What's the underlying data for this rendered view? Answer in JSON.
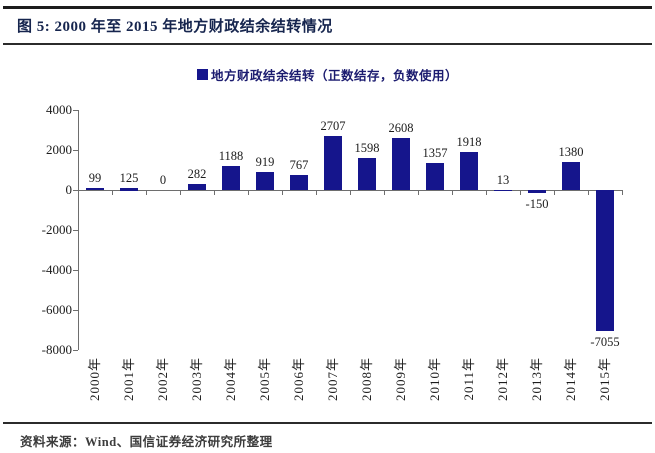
{
  "header": {
    "title": "图 5:  2000 年至 2015 年地方财政结余结转情况"
  },
  "chart_data": {
    "type": "bar",
    "title": "2000 年至 2015 年地方财政结余结转情况",
    "legend": "地方财政结余结转（正数结存，负数使用）",
    "legend_position": "top",
    "categories": [
      "2000年",
      "2001年",
      "2002年",
      "2003年",
      "2004年",
      "2005年",
      "2006年",
      "2007年",
      "2008年",
      "2009年",
      "2010年",
      "2011年",
      "2012年",
      "2013年",
      "2014年",
      "2015年"
    ],
    "values": [
      99,
      125,
      0,
      282,
      1188,
      919,
      767,
      2707,
      1598,
      2608,
      1357,
      1918,
      13,
      -150,
      1380,
      -7055
    ],
    "value_labels": [
      "99",
      "125",
      "0",
      "282",
      "1188",
      "919",
      "767",
      "2707",
      "1598",
      "2608",
      "1357",
      "1918",
      "13",
      "-150",
      "1380",
      "-7055"
    ],
    "xlabel": "",
    "ylabel": "",
    "ylim": [
      -8000,
      4000
    ],
    "yticks": [
      4000,
      2000,
      0,
      -2000,
      -4000,
      -6000,
      -8000
    ],
    "ytick_labels": [
      "4000",
      "2000",
      "0",
      "-2000",
      "-4000",
      "-6000",
      "-8000"
    ],
    "grid": false,
    "colors": {
      "bar": "#15158C",
      "legend_text": "#1b1b6f",
      "title_text": "#16254e",
      "axis": "#6e6e6e",
      "label_text": "#1c1c1c"
    }
  },
  "footer": {
    "source": "资料来源：Wind、国信证券经济研究所整理"
  }
}
